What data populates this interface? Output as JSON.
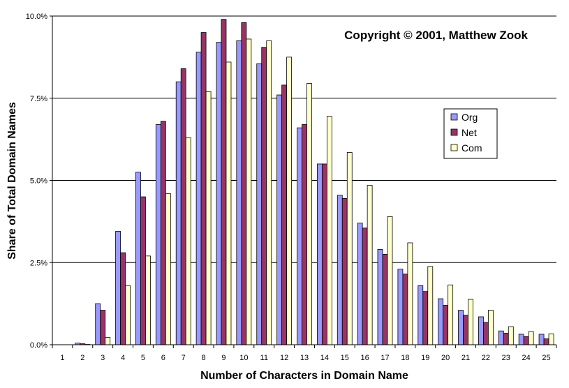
{
  "chart_data": {
    "type": "bar",
    "title": "",
    "annotation": "Copyright © 2001, Matthew Zook",
    "xlabel": "Number of Characters in Domain Name",
    "ylabel": "Share of Total Domain Names",
    "categories": [
      "1",
      "2",
      "3",
      "4",
      "5",
      "6",
      "7",
      "8",
      "9",
      "10",
      "11",
      "12",
      "13",
      "14",
      "15",
      "16",
      "17",
      "18",
      "19",
      "20",
      "21",
      "22",
      "23",
      "24",
      "25"
    ],
    "ylim": [
      0,
      10
    ],
    "yticks": [
      0,
      2.5,
      5,
      7.5,
      10
    ],
    "ytick_labels": [
      "0.0%",
      "2.5%",
      "5.0%",
      "7.5%",
      "10.0%"
    ],
    "grid": true,
    "legend_position": "right",
    "series": [
      {
        "name": "Org",
        "color": "#9999ff",
        "values": [
          0,
          0.05,
          1.25,
          3.45,
          5.25,
          6.7,
          8.0,
          8.9,
          9.2,
          9.25,
          8.55,
          7.6,
          6.6,
          5.5,
          4.55,
          3.7,
          2.9,
          2.3,
          1.8,
          1.4,
          1.05,
          0.85,
          0.42,
          0.32,
          0.32
        ]
      },
      {
        "name": "Net",
        "color": "#993366",
        "values": [
          0,
          0.03,
          1.05,
          2.8,
          4.5,
          6.8,
          8.4,
          9.5,
          9.9,
          9.8,
          9.05,
          7.9,
          6.7,
          5.5,
          4.45,
          3.55,
          2.75,
          2.15,
          1.62,
          1.2,
          0.9,
          0.68,
          0.35,
          0.25,
          0.18
        ]
      },
      {
        "name": "Com",
        "color": "#ffffcc",
        "values": [
          0,
          0.01,
          0.22,
          1.8,
          2.7,
          4.6,
          6.3,
          7.7,
          8.6,
          9.3,
          9.25,
          8.75,
          7.95,
          6.95,
          5.85,
          4.85,
          3.9,
          3.1,
          2.38,
          1.82,
          1.38,
          1.05,
          0.55,
          0.4,
          0.33
        ]
      }
    ]
  }
}
